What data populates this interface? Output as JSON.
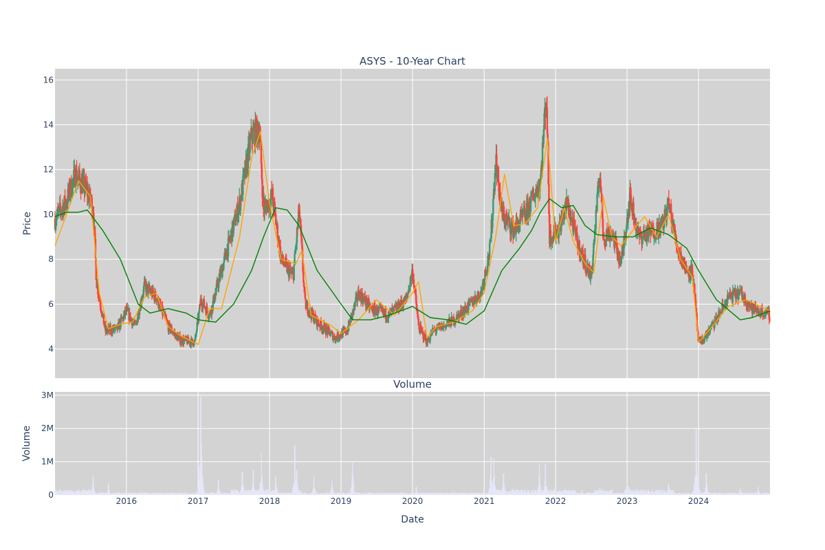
{
  "chart_data": [
    {
      "type": "candlestick",
      "title": "ASYS - 10-Year Chart",
      "ylabel": "Price",
      "ylim": [
        2.7,
        16.5
      ],
      "yticks": [
        4,
        6,
        8,
        10,
        12,
        14,
        16
      ],
      "x_range": [
        "2015-01-01",
        "2024-12-31"
      ],
      "xticks": [
        "2016",
        "2017",
        "2018",
        "2019",
        "2020",
        "2021",
        "2022",
        "2023",
        "2024"
      ],
      "grid": true,
      "colors": {
        "up": "#3d9970",
        "down": "#ff4136",
        "ma_short": "#ffa500",
        "ma_long": "#008000",
        "background": "#d3d3d3"
      },
      "series": [
        {
          "kind": "close",
          "x": [
            "2015-01-01",
            "2015-03-01",
            "2015-04-15",
            "2015-06-15",
            "2015-07-15",
            "2015-08-01",
            "2015-09-15",
            "2015-11-15",
            "2016-01-01",
            "2016-02-15",
            "2016-04-01",
            "2016-06-01",
            "2016-08-01",
            "2016-10-01",
            "2016-12-15",
            "2017-01-15",
            "2017-03-01",
            "2017-04-15",
            "2017-06-01",
            "2017-08-01",
            "2017-10-01",
            "2017-11-10",
            "2017-12-01",
            "2018-01-15",
            "2018-03-01",
            "2018-05-01",
            "2018-06-01",
            "2018-07-01",
            "2018-09-01",
            "2018-12-01",
            "2019-02-01",
            "2019-04-01",
            "2019-06-01",
            "2019-09-01",
            "2019-12-01",
            "2020-01-01",
            "2020-02-01",
            "2020-03-15",
            "2020-04-15",
            "2020-06-01",
            "2020-08-01",
            "2020-10-01",
            "2020-12-15",
            "2021-02-01",
            "2021-03-01",
            "2021-04-01",
            "2021-06-01",
            "2021-08-01",
            "2021-10-15",
            "2021-11-15",
            "2021-12-01",
            "2022-01-15",
            "2022-03-01",
            "2022-05-01",
            "2022-07-01",
            "2022-08-15",
            "2022-09-01",
            "2022-10-15",
            "2022-12-01",
            "2023-01-15",
            "2023-03-01",
            "2023-05-01",
            "2023-07-01",
            "2023-08-01",
            "2023-09-15",
            "2023-11-01",
            "2023-12-01",
            "2024-01-01",
            "2024-02-01",
            "2024-04-01",
            "2024-06-01",
            "2024-08-01",
            "2024-10-01",
            "2024-12-31"
          ],
          "values": [
            9.8,
            10.6,
            11.8,
            11.0,
            10.3,
            7.0,
            4.8,
            4.9,
            5.7,
            5.0,
            6.8,
            6.3,
            5.0,
            4.4,
            4.3,
            6.2,
            5.5,
            7.0,
            8.5,
            10.5,
            13.5,
            13.8,
            10.2,
            10.8,
            8.0,
            7.2,
            10.2,
            6.0,
            5.2,
            4.5,
            4.8,
            6.5,
            5.8,
            5.5,
            6.2,
            7.5,
            5.0,
            4.3,
            4.8,
            5.0,
            5.3,
            5.8,
            6.5,
            8.5,
            12.5,
            10.0,
            9.3,
            10.0,
            11.5,
            15.5,
            9.0,
            9.3,
            10.5,
            8.5,
            7.2,
            12.0,
            9.0,
            9.2,
            7.8,
            10.8,
            9.0,
            9.2,
            9.5,
            10.5,
            8.5,
            7.5,
            7.5,
            4.2,
            4.5,
            5.3,
            6.3,
            6.5,
            5.8,
            5.5
          ]
        },
        {
          "kind": "ma_short",
          "x": [
            "2015-01-01",
            "2015-03-01",
            "2015-05-01",
            "2015-07-01",
            "2015-08-15",
            "2015-10-01",
            "2015-12-01",
            "2016-02-01",
            "2016-04-01",
            "2016-06-01",
            "2016-08-01",
            "2016-10-01",
            "2017-01-01",
            "2017-03-01",
            "2017-05-01",
            "2017-08-01",
            "2017-10-01",
            "2017-11-15",
            "2018-01-01",
            "2018-03-01",
            "2018-05-15",
            "2018-06-15",
            "2018-08-01",
            "2018-11-01",
            "2019-01-01",
            "2019-04-01",
            "2019-07-01",
            "2019-10-01",
            "2020-01-01",
            "2020-02-01",
            "2020-03-15",
            "2020-05-01",
            "2020-08-01",
            "2020-11-01",
            "2021-01-01",
            "2021-03-01",
            "2021-04-15",
            "2021-06-01",
            "2021-08-01",
            "2021-10-01",
            "2021-11-20",
            "2022-01-01",
            "2022-02-15",
            "2022-04-01",
            "2022-06-01",
            "2022-07-15",
            "2022-09-01",
            "2022-10-15",
            "2022-12-01",
            "2023-02-01",
            "2023-04-01",
            "2023-06-01",
            "2023-08-01",
            "2023-10-01",
            "2023-12-01",
            "2024-01-01",
            "2024-03-01",
            "2024-06-01",
            "2024-09-01",
            "2024-12-31"
          ],
          "values": [
            8.6,
            10.0,
            11.5,
            10.8,
            6.5,
            4.9,
            5.1,
            5.2,
            6.3,
            6.5,
            5.0,
            4.6,
            4.2,
            5.8,
            5.8,
            9.0,
            12.5,
            13.7,
            10.5,
            8.0,
            7.8,
            8.4,
            5.5,
            5.1,
            4.7,
            5.3,
            6.2,
            5.5,
            6.5,
            7.0,
            4.5,
            5.0,
            5.2,
            5.7,
            6.5,
            9.0,
            11.8,
            9.5,
            9.6,
            10.3,
            13.4,
            8.8,
            10.3,
            8.8,
            7.8,
            7.4,
            10.8,
            9.0,
            8.6,
            9.3,
            9.9,
            9.0,
            10.0,
            8.0,
            7.2,
            4.3,
            4.9,
            5.9,
            6.2,
            5.7
          ]
        },
        {
          "kind": "ma_long",
          "x": [
            "2015-01-01",
            "2015-03-01",
            "2015-05-01",
            "2015-06-15",
            "2015-09-01",
            "2015-12-01",
            "2016-03-01",
            "2016-05-01",
            "2016-08-01",
            "2016-11-01",
            "2017-01-01",
            "2017-04-01",
            "2017-07-01",
            "2017-10-01",
            "2017-12-01",
            "2018-02-01",
            "2018-04-01",
            "2018-06-01",
            "2018-09-01",
            "2019-01-01",
            "2019-03-01",
            "2019-06-01",
            "2019-09-01",
            "2020-01-01",
            "2020-04-01",
            "2020-07-01",
            "2020-10-01",
            "2021-01-01",
            "2021-04-01",
            "2021-07-01",
            "2021-09-01",
            "2021-10-15",
            "2021-12-01",
            "2022-02-01",
            "2022-04-01",
            "2022-06-01",
            "2022-08-01",
            "2022-11-01",
            "2023-02-01",
            "2023-05-01",
            "2023-08-01",
            "2023-11-01",
            "2024-01-01",
            "2024-04-01",
            "2024-08-01",
            "2024-10-01",
            "2024-12-31"
          ],
          "values": [
            9.9,
            10.1,
            10.1,
            10.2,
            9.3,
            8.0,
            6.0,
            5.6,
            5.8,
            5.6,
            5.3,
            5.2,
            6.0,
            7.5,
            9.0,
            10.3,
            10.2,
            9.5,
            7.5,
            6.0,
            5.3,
            5.3,
            5.5,
            5.9,
            5.4,
            5.3,
            5.1,
            5.7,
            7.5,
            8.5,
            9.3,
            10.1,
            10.7,
            10.3,
            10.4,
            9.5,
            9.1,
            9.0,
            9.0,
            9.4,
            9.1,
            8.5,
            7.5,
            6.2,
            5.3,
            5.4,
            5.7
          ]
        }
      ]
    },
    {
      "type": "bar",
      "title": "Volume",
      "ylabel": "Volume",
      "xlabel": "Date",
      "ylim": [
        0,
        3100000
      ],
      "ytick_values": [
        0,
        1000000,
        2000000,
        3000000
      ],
      "yticks": [
        "0",
        "1M",
        "2M",
        "3M"
      ],
      "xticks": [
        "2016",
        "2017",
        "2018",
        "2019",
        "2020",
        "2021",
        "2022",
        "2023",
        "2024"
      ],
      "colors": {
        "bar": "#e6e6fa",
        "background": "#d3d3d3"
      },
      "spikes": {
        "x": [
          "2015-07-15",
          "2015-10-01",
          "2017-01-15",
          "2017-01-18",
          "2017-04-15",
          "2017-08-15",
          "2017-10-10",
          "2017-11-20",
          "2018-02-01",
          "2018-05-10",
          "2018-05-20",
          "2018-08-15",
          "2018-11-15",
          "2019-03-01",
          "2020-01-20",
          "2021-02-05",
          "2021-02-20",
          "2021-04-10",
          "2021-10-10",
          "2021-11-10",
          "2022-05-15",
          "2022-08-15",
          "2023-01-10",
          "2023-08-01",
          "2023-12-20",
          "2024-01-01",
          "2024-02-10",
          "2024-08-01",
          "2024-11-01"
        ],
        "values": [
          550000,
          350000,
          2950000,
          600000,
          450000,
          700000,
          750000,
          1250000,
          550000,
          1500000,
          750000,
          550000,
          450000,
          1000000,
          250000,
          1150000,
          1100000,
          650000,
          950000,
          950000,
          150000,
          200000,
          250000,
          350000,
          2000000,
          600000,
          650000,
          200000,
          250000
        ]
      }
    }
  ]
}
